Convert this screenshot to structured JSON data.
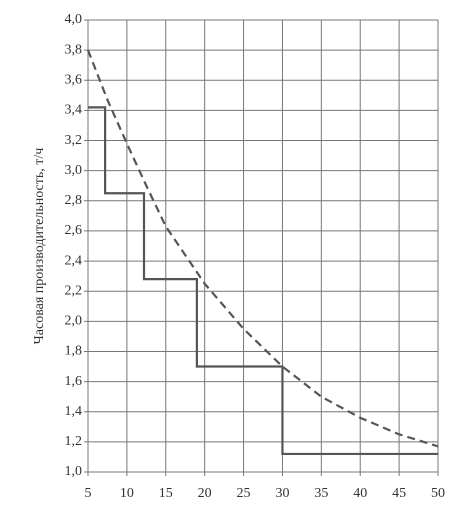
{
  "chart_data": {
    "type": "line",
    "y_label": "Часовая производительность, т/ч",
    "xlim": [
      5,
      50
    ],
    "xticks": [
      5,
      10,
      15,
      20,
      25,
      30,
      35,
      40,
      45,
      50
    ],
    "ylim": [
      1.0,
      4.0
    ],
    "yticks": [
      {
        "value": 1.0,
        "label": "1,0"
      },
      {
        "value": 1.2,
        "label": "1,2"
      },
      {
        "value": 1.4,
        "label": "1,4"
      },
      {
        "value": 1.6,
        "label": "1,6"
      },
      {
        "value": 1.8,
        "label": "1,8"
      },
      {
        "value": 2.0,
        "label": "2,0"
      },
      {
        "value": 2.2,
        "label": "2,2"
      },
      {
        "value": 2.4,
        "label": "2,4"
      },
      {
        "value": 2.6,
        "label": "2,6"
      },
      {
        "value": 2.8,
        "label": "2,8"
      },
      {
        "value": 3.0,
        "label": "3,0"
      },
      {
        "value": 3.2,
        "label": "3,2"
      },
      {
        "value": 3.4,
        "label": "3,4"
      },
      {
        "value": 3.6,
        "label": "3,6"
      },
      {
        "value": 3.8,
        "label": "3,8"
      },
      {
        "value": 4.0,
        "label": "4,0"
      }
    ],
    "grid": true,
    "series": [
      {
        "color": "#555555",
        "dash": false,
        "x": [
          5,
          7.2,
          7.2,
          12.2,
          12.2,
          19,
          19,
          30,
          30,
          50
        ],
        "values": [
          3.42,
          3.42,
          2.85,
          2.85,
          2.28,
          2.28,
          1.7,
          1.7,
          1.12,
          1.12
        ]
      },
      {
        "color": "#555555",
        "dash": true,
        "x": [
          5,
          7.5,
          10,
          12.5,
          15,
          20,
          25,
          30,
          35,
          40,
          45,
          50
        ],
        "values": [
          3.8,
          3.47,
          3.18,
          2.9,
          2.63,
          2.25,
          1.95,
          1.7,
          1.5,
          1.36,
          1.25,
          1.17
        ]
      }
    ]
  }
}
